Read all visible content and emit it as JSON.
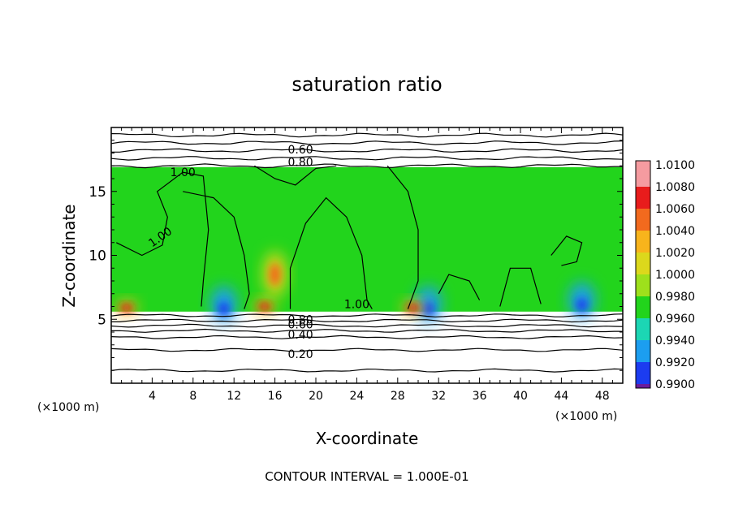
{
  "chart_data": {
    "type": "heatmap",
    "title": "saturation ratio",
    "xlabel": "X-coordinate",
    "ylabel": "Z-coordinate",
    "x_unit_left": "(×1000 m)",
    "x_unit_right": "(×1000 m)",
    "xlim": [
      0,
      50
    ],
    "ylim": [
      0,
      20
    ],
    "xticks": [
      4,
      8,
      12,
      16,
      20,
      24,
      28,
      32,
      36,
      40,
      44,
      48
    ],
    "yticks": [
      5,
      10,
      15
    ],
    "footer": "CONTOUR INTERVAL = 1.000E-01",
    "colorbar": {
      "levels": [
        "1.0100",
        "1.0080",
        "1.0060",
        "1.0040",
        "1.0020",
        "1.0000",
        "0.9980",
        "0.9960",
        "0.9940",
        "0.9920",
        "0.9900"
      ],
      "colors": [
        "#f59ba0",
        "#e81c1c",
        "#f26a1e",
        "#f8b41c",
        "#dcd81c",
        "#9ee01c",
        "#22d41c",
        "#1cd6b4",
        "#1c9ef0",
        "#1c3cf0",
        "#20148c",
        "#6a1c9c"
      ]
    },
    "contour_labels": [
      "0.60",
      "0.80",
      "1.00",
      "1.00",
      "1.00",
      "0.80",
      "0.60",
      "0.40",
      "0.20"
    ],
    "cloud_layer": {
      "z_bottom": 5.6,
      "z_top": 16.9
    },
    "cold_spots": [
      {
        "x": 11,
        "z": 6.2
      },
      {
        "x": 31,
        "z": 6.2
      },
      {
        "x": 46,
        "z": 6.5
      }
    ],
    "warm_spots": [
      {
        "x": 1.5,
        "z": 5.9
      },
      {
        "x": 15,
        "z": 6.0
      },
      {
        "x": 16,
        "z": 8.5
      },
      {
        "x": 29.5,
        "z": 5.9
      }
    ]
  }
}
